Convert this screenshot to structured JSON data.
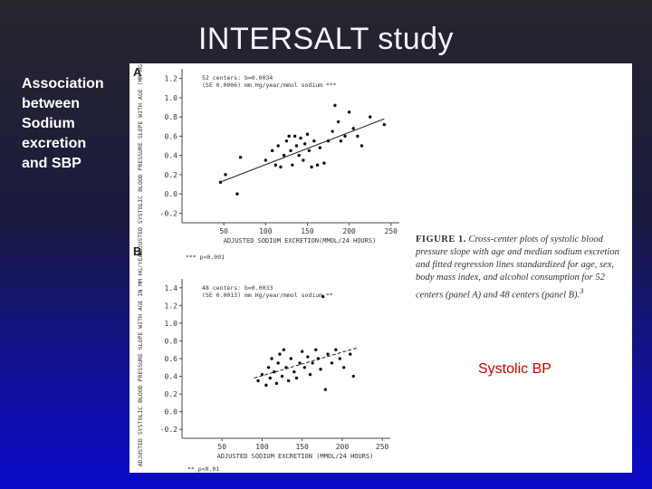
{
  "slide_title": "INTERSALT study",
  "side_label_lines": [
    "Association",
    "between",
    "Sodium",
    "excretion",
    "and SBP"
  ],
  "overlay_label": "Systolic BP",
  "caption": {
    "fig": "FIGURE 1.",
    "text": "Cross-center plots of systolic blood pressure slope with age and median sodium excretion and fitted regression lines standardized for age, sex, body mass index, and alcohol consumption for 52 centers (panel A) and 48 centers (panel B).",
    "superscript": "3"
  },
  "chart_data": [
    {
      "type": "scatter",
      "panel_letter": "A",
      "xlabel": "ADJUSTED SODIUM EXCRETION(MMOL/24 HOURS)",
      "ylabel": "ADJUSTED SYSTOLIC BLOOD PRESSURE SLOPE WITH AGE (MM HG / YEAR)",
      "xlim": [
        0,
        260
      ],
      "ylim": [
        -0.3,
        1.3
      ],
      "x_ticks": [
        50,
        100,
        150,
        200,
        250
      ],
      "y_ticks": [
        -0.2,
        0.0,
        0.2,
        0.4,
        0.6,
        0.8,
        1.0,
        1.2
      ],
      "y_tick_labels": [
        "-0.2",
        "0.0",
        "0.2",
        "0.4",
        "0.6",
        "0.8",
        "1.0",
        "1.2"
      ],
      "legend": [
        "52 centers: b=0.0034",
        "(SE 0.0006) mm Hg/year/mmol sodium ***"
      ],
      "footnote": "*** p<0.001",
      "regression": {
        "x": [
          45,
          242
        ],
        "y": [
          0.12,
          0.78
        ]
      },
      "points": [
        {
          "x": 46,
          "y": 0.12
        },
        {
          "x": 52,
          "y": 0.2
        },
        {
          "x": 66,
          "y": 0.0
        },
        {
          "x": 70,
          "y": 0.38
        },
        {
          "x": 100,
          "y": 0.35
        },
        {
          "x": 108,
          "y": 0.45
        },
        {
          "x": 112,
          "y": 0.3
        },
        {
          "x": 115,
          "y": 0.5
        },
        {
          "x": 118,
          "y": 0.28
        },
        {
          "x": 122,
          "y": 0.4
        },
        {
          "x": 125,
          "y": 0.55
        },
        {
          "x": 128,
          "y": 0.6
        },
        {
          "x": 130,
          "y": 0.45
        },
        {
          "x": 132,
          "y": 0.3
        },
        {
          "x": 135,
          "y": 0.6
        },
        {
          "x": 137,
          "y": 0.5
        },
        {
          "x": 140,
          "y": 0.4
        },
        {
          "x": 142,
          "y": 0.58
        },
        {
          "x": 145,
          "y": 0.35
        },
        {
          "x": 147,
          "y": 0.52
        },
        {
          "x": 150,
          "y": 0.62
        },
        {
          "x": 152,
          "y": 0.45
        },
        {
          "x": 155,
          "y": 0.28
        },
        {
          "x": 158,
          "y": 0.55
        },
        {
          "x": 162,
          "y": 0.3
        },
        {
          "x": 165,
          "y": 0.48
        },
        {
          "x": 170,
          "y": 0.32
        },
        {
          "x": 175,
          "y": 0.55
        },
        {
          "x": 180,
          "y": 0.65
        },
        {
          "x": 183,
          "y": 0.92
        },
        {
          "x": 187,
          "y": 0.75
        },
        {
          "x": 190,
          "y": 0.55
        },
        {
          "x": 195,
          "y": 0.6
        },
        {
          "x": 200,
          "y": 0.85
        },
        {
          "x": 205,
          "y": 0.68
        },
        {
          "x": 210,
          "y": 0.6
        },
        {
          "x": 215,
          "y": 0.5
        },
        {
          "x": 225,
          "y": 0.8
        },
        {
          "x": 242,
          "y": 0.72
        }
      ]
    },
    {
      "type": "scatter",
      "panel_letter": "B",
      "xlabel": "ADJUSTED SODIUM EXCRETION (MMOL/24 HOURS)",
      "ylabel": "ADJUSTED SYSTOLIC BLOOD PRESSURE SLOPE WITH AGE IN MM HG/YEAR",
      "xlim": [
        0,
        260
      ],
      "ylim": [
        -0.3,
        1.5
      ],
      "x_ticks": [
        50,
        100,
        150,
        200,
        250
      ],
      "y_ticks": [
        -0.2,
        0.0,
        0.2,
        0.4,
        0.6,
        0.8,
        1.0,
        1.2,
        1.4
      ],
      "y_tick_labels": [
        "-0.2",
        "0.0",
        "0.2",
        "0.4",
        "0.6",
        "0.8",
        "1.0",
        "1.2",
        "1.4"
      ],
      "legend": [
        "48 centers: b=0.0033",
        "(SE 0.0013) mm Hg/year/mmol sodium **"
      ],
      "footnote": "** p<0.01",
      "regression": {
        "x": [
          90,
          218
        ],
        "y": [
          0.38,
          0.72
        ]
      },
      "points": [
        {
          "x": 95,
          "y": 0.35
        },
        {
          "x": 100,
          "y": 0.42
        },
        {
          "x": 105,
          "y": 0.3
        },
        {
          "x": 108,
          "y": 0.5
        },
        {
          "x": 110,
          "y": 0.38
        },
        {
          "x": 112,
          "y": 0.6
        },
        {
          "x": 115,
          "y": 0.45
        },
        {
          "x": 118,
          "y": 0.32
        },
        {
          "x": 120,
          "y": 0.55
        },
        {
          "x": 122,
          "y": 0.65
        },
        {
          "x": 125,
          "y": 0.4
        },
        {
          "x": 127,
          "y": 0.7
        },
        {
          "x": 130,
          "y": 0.5
        },
        {
          "x": 133,
          "y": 0.35
        },
        {
          "x": 136,
          "y": 0.6
        },
        {
          "x": 140,
          "y": 0.45
        },
        {
          "x": 143,
          "y": 0.38
        },
        {
          "x": 147,
          "y": 0.55
        },
        {
          "x": 150,
          "y": 0.68
        },
        {
          "x": 153,
          "y": 0.5
        },
        {
          "x": 157,
          "y": 0.62
        },
        {
          "x": 160,
          "y": 0.42
        },
        {
          "x": 163,
          "y": 0.55
        },
        {
          "x": 167,
          "y": 0.7
        },
        {
          "x": 170,
          "y": 0.6
        },
        {
          "x": 173,
          "y": 0.48
        },
        {
          "x": 176,
          "y": 1.3
        },
        {
          "x": 179,
          "y": 0.25
        },
        {
          "x": 182,
          "y": 0.65
        },
        {
          "x": 187,
          "y": 0.55
        },
        {
          "x": 192,
          "y": 0.7
        },
        {
          "x": 197,
          "y": 0.6
        },
        {
          "x": 202,
          "y": 0.5
        },
        {
          "x": 210,
          "y": 0.65
        },
        {
          "x": 214,
          "y": 0.4
        }
      ]
    }
  ]
}
